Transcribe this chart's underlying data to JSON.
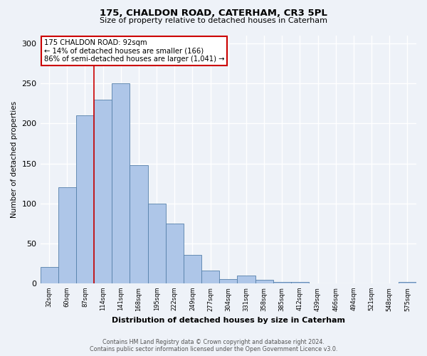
{
  "title1": "175, CHALDON ROAD, CATERHAM, CR3 5PL",
  "title2": "Size of property relative to detached houses in Caterham",
  "xlabel": "Distribution of detached houses by size in Caterham",
  "ylabel": "Number of detached properties",
  "bar_labels": [
    "32sqm",
    "60sqm",
    "87sqm",
    "114sqm",
    "141sqm",
    "168sqm",
    "195sqm",
    "222sqm",
    "249sqm",
    "277sqm",
    "304sqm",
    "331sqm",
    "358sqm",
    "385sqm",
    "412sqm",
    "439sqm",
    "466sqm",
    "494sqm",
    "521sqm",
    "548sqm",
    "575sqm"
  ],
  "bar_values": [
    20,
    120,
    210,
    230,
    250,
    148,
    100,
    75,
    36,
    16,
    5,
    10,
    4,
    2,
    2,
    0,
    0,
    0,
    0,
    0,
    2
  ],
  "bar_color": "#aec6e8",
  "bar_edge_color": "#5580aa",
  "property_line_label": "175 CHALDON ROAD: 92sqm",
  "annotation_line1": "← 14% of detached houses are smaller (166)",
  "annotation_line2": "86% of semi-detached houses are larger (1,041) →",
  "annotation_box_color": "#ffffff",
  "annotation_box_edge": "#cc0000",
  "vline_color": "#cc0000",
  "vline_index": 2.5,
  "ylim": [
    0,
    310
  ],
  "yticks": [
    0,
    50,
    100,
    150,
    200,
    250,
    300
  ],
  "footer1": "Contains HM Land Registry data © Crown copyright and database right 2024.",
  "footer2": "Contains public sector information licensed under the Open Government Licence v3.0.",
  "bg_color": "#eef2f8",
  "plot_bg_color": "#eef2f8",
  "grid_color": "#ffffff"
}
